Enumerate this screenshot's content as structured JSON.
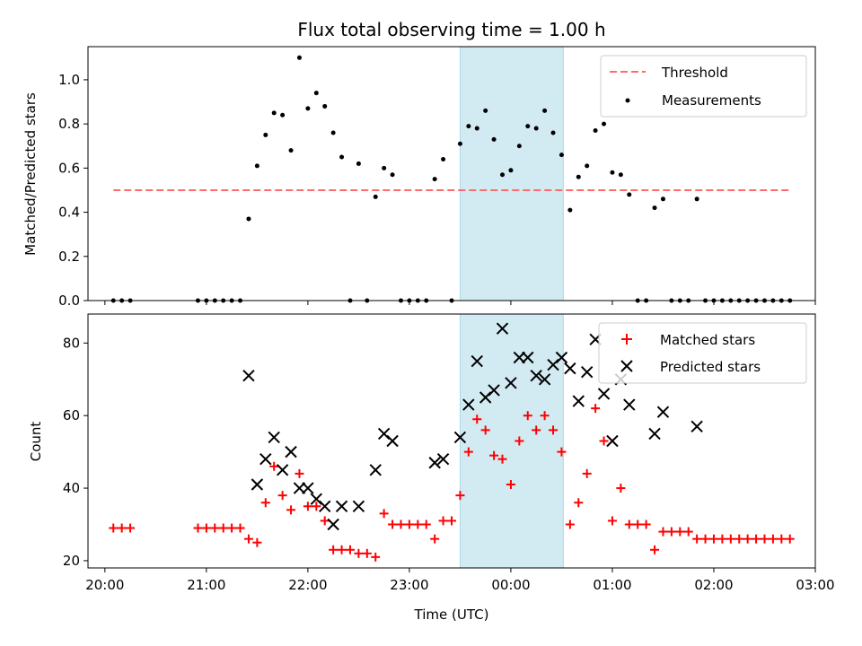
{
  "chart_data": {
    "title": "Flux total observing time = 1.00 h",
    "xlabel": "Time (UTC)",
    "x_unit": "hours after 20:00 UTC (tick labels show clock time)",
    "x_range": [
      "19:50",
      "03:00"
    ],
    "x_ticks": [
      "20:00",
      "21:00",
      "22:00",
      "23:00",
      "00:00",
      "01:00",
      "02:00",
      "03:00"
    ],
    "highlight": {
      "start": "23:30",
      "end": "00:31",
      "color": "#add8e6"
    },
    "panels": [
      {
        "type": "scatter",
        "ylabel": "Matched/Predicted stars",
        "ylim": [
          0,
          1.15
        ],
        "yticks": [
          "0.0",
          "0.2",
          "0.4",
          "0.6",
          "0.8",
          "1.0"
        ],
        "legend_placement": "top-right",
        "threshold": {
          "name": "Threshold",
          "value": 0.5,
          "x_start": "20:05",
          "x_end": "02:45",
          "color": "#ff6b6b"
        },
        "series": [
          {
            "name": "Measurements",
            "color": "#000000",
            "points": [
              [
                "20:05",
                0
              ],
              [
                "20:10",
                0
              ],
              [
                "20:15",
                0
              ],
              [
                "20:55",
                0
              ],
              [
                "21:00",
                0
              ],
              [
                "21:05",
                0
              ],
              [
                "21:10",
                0
              ],
              [
                "21:15",
                0
              ],
              [
                "21:20",
                0
              ],
              [
                "21:25",
                0.37
              ],
              [
                "21:30",
                0.61
              ],
              [
                "21:35",
                0.75
              ],
              [
                "21:40",
                0.85
              ],
              [
                "21:45",
                0.84
              ],
              [
                "21:50",
                0.68
              ],
              [
                "21:55",
                1.1
              ],
              [
                "22:00",
                0.87
              ],
              [
                "22:05",
                0.94
              ],
              [
                "22:10",
                0.88
              ],
              [
                "22:15",
                0.76
              ],
              [
                "22:20",
                0.65
              ],
              [
                "22:25",
                0
              ],
              [
                "22:30",
                0.62
              ],
              [
                "22:35",
                0
              ],
              [
                "22:40",
                0.47
              ],
              [
                "22:45",
                0.6
              ],
              [
                "22:50",
                0.57
              ],
              [
                "22:55",
                0
              ],
              [
                "23:00",
                0
              ],
              [
                "23:05",
                0
              ],
              [
                "23:10",
                0
              ],
              [
                "23:15",
                0.55
              ],
              [
                "23:20",
                0.64
              ],
              [
                "23:25",
                0
              ],
              [
                "23:30",
                0.71
              ],
              [
                "23:35",
                0.79
              ],
              [
                "23:40",
                0.78
              ],
              [
                "23:45",
                0.86
              ],
              [
                "23:50",
                0.73
              ],
              [
                "23:55",
                0.57
              ],
              [
                "00:00",
                0.59
              ],
              [
                "00:05",
                0.7
              ],
              [
                "00:10",
                0.79
              ],
              [
                "00:15",
                0.78
              ],
              [
                "00:20",
                0.86
              ],
              [
                "00:25",
                0.76
              ],
              [
                "00:30",
                0.66
              ],
              [
                "00:35",
                0.41
              ],
              [
                "00:40",
                0.56
              ],
              [
                "00:45",
                0.61
              ],
              [
                "00:50",
                0.77
              ],
              [
                "00:55",
                0.8
              ],
              [
                "01:00",
                0.58
              ],
              [
                "01:05",
                0.57
              ],
              [
                "01:10",
                0.48
              ],
              [
                "01:15",
                0
              ],
              [
                "01:20",
                0
              ],
              [
                "01:25",
                0.42
              ],
              [
                "01:30",
                0.46
              ],
              [
                "01:35",
                0
              ],
              [
                "01:40",
                0
              ],
              [
                "01:45",
                0
              ],
              [
                "01:50",
                0.46
              ],
              [
                "01:55",
                0
              ],
              [
                "02:00",
                0
              ],
              [
                "02:05",
                0
              ],
              [
                "02:10",
                0
              ],
              [
                "02:15",
                0
              ],
              [
                "02:20",
                0
              ],
              [
                "02:25",
                0
              ],
              [
                "02:30",
                0
              ],
              [
                "02:35",
                0
              ],
              [
                "02:40",
                0
              ],
              [
                "02:45",
                0
              ]
            ]
          }
        ]
      },
      {
        "type": "scatter",
        "ylabel": "Count",
        "ylim": [
          18,
          88
        ],
        "yticks": [
          "20",
          "40",
          "60",
          "80"
        ],
        "legend_placement": "top-right",
        "series": [
          {
            "name": "Matched stars",
            "marker": "plus",
            "color": "#ff0000",
            "points": [
              [
                "20:05",
                29
              ],
              [
                "20:10",
                29
              ],
              [
                "20:15",
                29
              ],
              [
                "20:55",
                29
              ],
              [
                "21:00",
                29
              ],
              [
                "21:05",
                29
              ],
              [
                "21:10",
                29
              ],
              [
                "21:15",
                29
              ],
              [
                "21:20",
                29
              ],
              [
                "21:25",
                26
              ],
              [
                "21:30",
                25
              ],
              [
                "21:35",
                36
              ],
              [
                "21:40",
                46
              ],
              [
                "21:45",
                38
              ],
              [
                "21:50",
                34
              ],
              [
                "21:55",
                44
              ],
              [
                "22:00",
                35
              ],
              [
                "22:05",
                35
              ],
              [
                "22:10",
                31
              ],
              [
                "22:15",
                23
              ],
              [
                "22:20",
                23
              ],
              [
                "22:25",
                23
              ],
              [
                "22:30",
                22
              ],
              [
                "22:35",
                22
              ],
              [
                "22:40",
                21
              ],
              [
                "22:45",
                33
              ],
              [
                "22:50",
                30
              ],
              [
                "22:55",
                30
              ],
              [
                "23:00",
                30
              ],
              [
                "23:05",
                30
              ],
              [
                "23:10",
                30
              ],
              [
                "23:15",
                26
              ],
              [
                "23:20",
                31
              ],
              [
                "23:25",
                31
              ],
              [
                "23:30",
                38
              ],
              [
                "23:35",
                50
              ],
              [
                "23:40",
                59
              ],
              [
                "23:45",
                56
              ],
              [
                "23:50",
                49
              ],
              [
                "23:55",
                48
              ],
              [
                "00:00",
                41
              ],
              [
                "00:05",
                53
              ],
              [
                "00:10",
                60
              ],
              [
                "00:15",
                56
              ],
              [
                "00:20",
                60
              ],
              [
                "00:25",
                56
              ],
              [
                "00:30",
                50
              ],
              [
                "00:35",
                30
              ],
              [
                "00:40",
                36
              ],
              [
                "00:45",
                44
              ],
              [
                "00:50",
                62
              ],
              [
                "00:55",
                53
              ],
              [
                "01:00",
                31
              ],
              [
                "01:05",
                40
              ],
              [
                "01:10",
                30
              ],
              [
                "01:15",
                30
              ],
              [
                "01:20",
                30
              ],
              [
                "01:25",
                23
              ],
              [
                "01:30",
                28
              ],
              [
                "01:35",
                28
              ],
              [
                "01:40",
                28
              ],
              [
                "01:45",
                28
              ],
              [
                "01:50",
                26
              ],
              [
                "01:55",
                26
              ],
              [
                "02:00",
                26
              ],
              [
                "02:05",
                26
              ],
              [
                "02:10",
                26
              ],
              [
                "02:15",
                26
              ],
              [
                "02:20",
                26
              ],
              [
                "02:25",
                26
              ],
              [
                "02:30",
                26
              ],
              [
                "02:35",
                26
              ],
              [
                "02:40",
                26
              ],
              [
                "02:45",
                26
              ]
            ]
          },
          {
            "name": "Predicted stars",
            "marker": "x",
            "color": "#000000",
            "points": [
              [
                "21:25",
                71
              ],
              [
                "21:30",
                41
              ],
              [
                "21:35",
                48
              ],
              [
                "21:40",
                54
              ],
              [
                "21:45",
                45
              ],
              [
                "21:50",
                50
              ],
              [
                "21:55",
                40
              ],
              [
                "22:00",
                40
              ],
              [
                "22:05",
                37
              ],
              [
                "22:10",
                35
              ],
              [
                "22:15",
                30
              ],
              [
                "22:20",
                35
              ],
              [
                "22:30",
                35
              ],
              [
                "22:40",
                45
              ],
              [
                "22:45",
                55
              ],
              [
                "22:50",
                53
              ],
              [
                "23:15",
                47
              ],
              [
                "23:20",
                48
              ],
              [
                "23:30",
                54
              ],
              [
                "23:35",
                63
              ],
              [
                "23:40",
                75
              ],
              [
                "23:45",
                65
              ],
              [
                "23:50",
                67
              ],
              [
                "23:55",
                84
              ],
              [
                "00:00",
                69
              ],
              [
                "00:05",
                76
              ],
              [
                "00:10",
                76
              ],
              [
                "00:15",
                71
              ],
              [
                "00:20",
                70
              ],
              [
                "00:25",
                74
              ],
              [
                "00:30",
                76
              ],
              [
                "00:35",
                73
              ],
              [
                "00:40",
                64
              ],
              [
                "00:45",
                72
              ],
              [
                "00:50",
                81
              ],
              [
                "00:55",
                66
              ],
              [
                "01:00",
                53
              ],
              [
                "01:05",
                70
              ],
              [
                "01:10",
                63
              ],
              [
                "01:25",
                55
              ],
              [
                "01:30",
                61
              ],
              [
                "01:50",
                57
              ]
            ]
          }
        ]
      }
    ]
  }
}
